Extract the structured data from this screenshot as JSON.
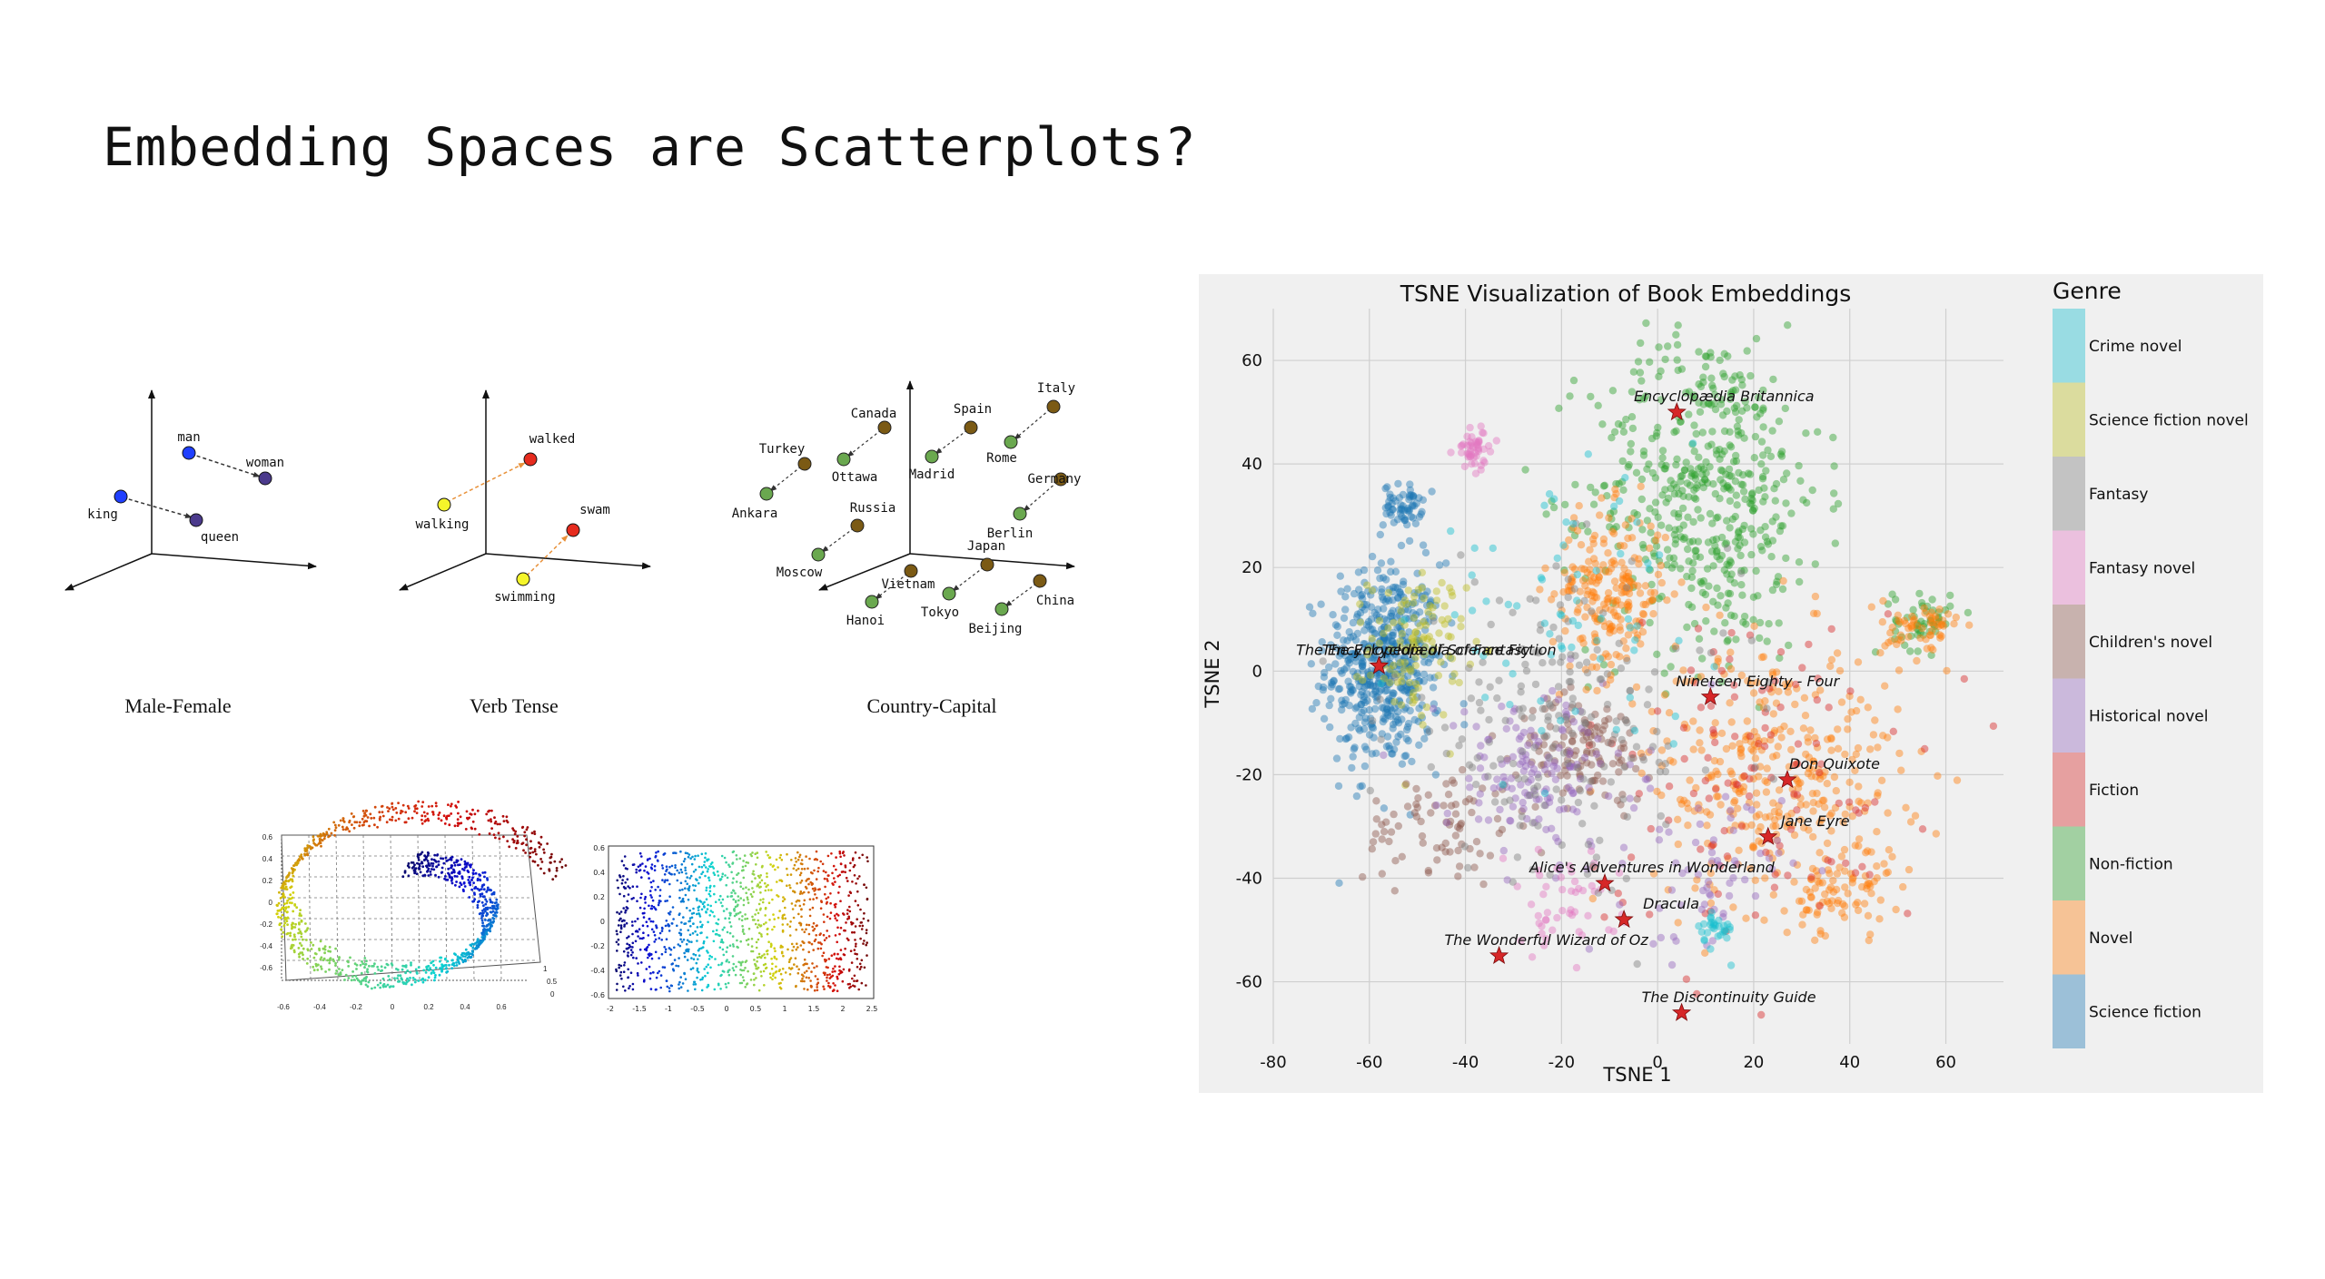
{
  "slide": {
    "title": "Embedding Spaces are Scatterplots?"
  },
  "word_vectors": {
    "panels": [
      {
        "caption": "Male-Female",
        "labels": [
          "man",
          "woman",
          "king",
          "queen"
        ]
      },
      {
        "caption": "Verb Tense",
        "labels": [
          "walked",
          "walking",
          "swam",
          "swimming"
        ]
      },
      {
        "caption": "Country-Capital",
        "labels": [
          "Italy",
          "Rome",
          "Spain",
          "Madrid",
          "Canada",
          "Ottawa",
          "Turkey",
          "Ankara",
          "Germany",
          "Berlin",
          "Russia",
          "Moscow",
          "Japan",
          "Tokyo",
          "China",
          "Beijing",
          "Vietnam",
          "Hanoi"
        ]
      }
    ]
  },
  "manifold": {
    "swiss_roll": {
      "y_ticks": [
        "0.6",
        "0.4",
        "0.2",
        "0",
        "-0.2",
        "-0.4",
        "-0.6"
      ],
      "x_ticks": [
        "-0.6",
        "-0.4",
        "-0.2",
        "0",
        "0.2",
        "0.4",
        "0.6"
      ],
      "z_ticks": [
        "1",
        "0.5",
        "0"
      ]
    },
    "unrolled": {
      "y_ticks": [
        "0.6",
        "0.4",
        "0.2",
        "0",
        "-0.2",
        "-0.4",
        "-0.6"
      ],
      "x_ticks": [
        "-2",
        "-1.5",
        "-1",
        "-0.5",
        "0",
        "0.5",
        "1",
        "1.5",
        "2",
        "2.5"
      ]
    }
  },
  "chart_data": {
    "type": "scatter",
    "title": "TSNE Visualization of Book Embeddings",
    "xlabel": "TSNE 1",
    "ylabel": "TSNE 2",
    "xlim": [
      -80,
      72
    ],
    "ylim": [
      -72,
      70
    ],
    "x_ticks": [
      -80,
      -60,
      -40,
      -20,
      0,
      20,
      40,
      60
    ],
    "y_ticks": [
      -60,
      -40,
      -20,
      0,
      20,
      40,
      60
    ],
    "grid": true,
    "legend": {
      "title": "Genre",
      "placement": "right",
      "entries": [
        {
          "label": "Crime novel",
          "color": "#17becf"
        },
        {
          "label": "Science fiction novel",
          "color": "#bcbd22"
        },
        {
          "label": "Fantasy",
          "color": "#7f7f7f"
        },
        {
          "label": "Fantasy novel",
          "color": "#e377c2"
        },
        {
          "label": "Children's novel",
          "color": "#8c564b"
        },
        {
          "label": "Historical novel",
          "color": "#9467bd"
        },
        {
          "label": "Fiction",
          "color": "#d62728"
        },
        {
          "label": "Non-fiction",
          "color": "#2ca02c"
        },
        {
          "label": "Novel",
          "color": "#ff7f0e"
        },
        {
          "label": "Science fiction",
          "color": "#1f77b4"
        }
      ]
    },
    "clusters": [
      {
        "genre": "Science fiction",
        "cx": -57,
        "cy": 1,
        "sx": 6,
        "sy": 10,
        "n": 520
      },
      {
        "genre": "Science fiction",
        "cx": -53,
        "cy": 32,
        "sx": 2,
        "sy": 2,
        "n": 60
      },
      {
        "genre": "Science fiction novel",
        "cx": -50,
        "cy": 5,
        "sx": 5,
        "sy": 7,
        "n": 120
      },
      {
        "genre": "Non-fiction",
        "cx": 10,
        "cy": 35,
        "sx": 12,
        "sy": 16,
        "n": 520
      },
      {
        "genre": "Non-fiction",
        "cx": 55,
        "cy": 10,
        "sx": 3,
        "sy": 3,
        "n": 50
      },
      {
        "genre": "Novel",
        "cx": -10,
        "cy": 15,
        "sx": 6,
        "sy": 8,
        "n": 220
      },
      {
        "genre": "Novel",
        "cx": 25,
        "cy": -20,
        "sx": 13,
        "sy": 13,
        "n": 360
      },
      {
        "genre": "Novel",
        "cx": 55,
        "cy": 8,
        "sx": 4,
        "sy": 3,
        "n": 60
      },
      {
        "genre": "Novel",
        "cx": 38,
        "cy": -43,
        "sx": 5,
        "sy": 4,
        "n": 70
      },
      {
        "genre": "Fiction",
        "cx": 20,
        "cy": -20,
        "sx": 18,
        "sy": 16,
        "n": 120
      },
      {
        "genre": "Children's novel",
        "cx": -15,
        "cy": -15,
        "sx": 7,
        "sy": 5,
        "n": 120
      },
      {
        "genre": "Children's novel",
        "cx": -45,
        "cy": -30,
        "sx": 8,
        "sy": 6,
        "n": 80
      },
      {
        "genre": "Historical novel",
        "cx": -25,
        "cy": -20,
        "sx": 10,
        "sy": 8,
        "n": 150
      },
      {
        "genre": "Historical novel",
        "cx": 10,
        "cy": -40,
        "sx": 8,
        "sy": 8,
        "n": 60
      },
      {
        "genre": "Fantasy novel",
        "cx": -38,
        "cy": 43,
        "sx": 2,
        "sy": 2,
        "n": 50
      },
      {
        "genre": "Fantasy novel",
        "cx": -20,
        "cy": -45,
        "sx": 6,
        "sy": 5,
        "n": 50
      },
      {
        "genre": "Fantasy",
        "cx": -20,
        "cy": -10,
        "sx": 18,
        "sy": 15,
        "n": 200
      },
      {
        "genre": "Crime novel",
        "cx": -20,
        "cy": 10,
        "sx": 15,
        "sy": 12,
        "n": 70
      },
      {
        "genre": "Crime novel",
        "cx": 12,
        "cy": -50,
        "sx": 2,
        "sy": 2,
        "n": 30
      }
    ],
    "annotations": [
      {
        "label": "Encyclopædia Britannica",
        "x": 4,
        "y": 50
      },
      {
        "label": "The Encyclopedia of Science Fiction",
        "x": -58,
        "y": 1
      },
      {
        "label": "The Encyclopedia of Fantasy",
        "x": -58,
        "y": 1
      },
      {
        "label": "Nineteen Eighty - Four",
        "x": 11,
        "y": -5
      },
      {
        "label": "Don Quixote",
        "x": 27,
        "y": -21
      },
      {
        "label": "Jane Eyre",
        "x": 23,
        "y": -32
      },
      {
        "label": "Alice's Adventures in Wonderland",
        "x": -11,
        "y": -41
      },
      {
        "label": "Dracula",
        "x": -7,
        "y": -48
      },
      {
        "label": "The Wonderful Wizard of Oz",
        "x": -33,
        "y": -55
      },
      {
        "label": "The Discontinuity Guide",
        "x": 5,
        "y": -66
      }
    ]
  }
}
